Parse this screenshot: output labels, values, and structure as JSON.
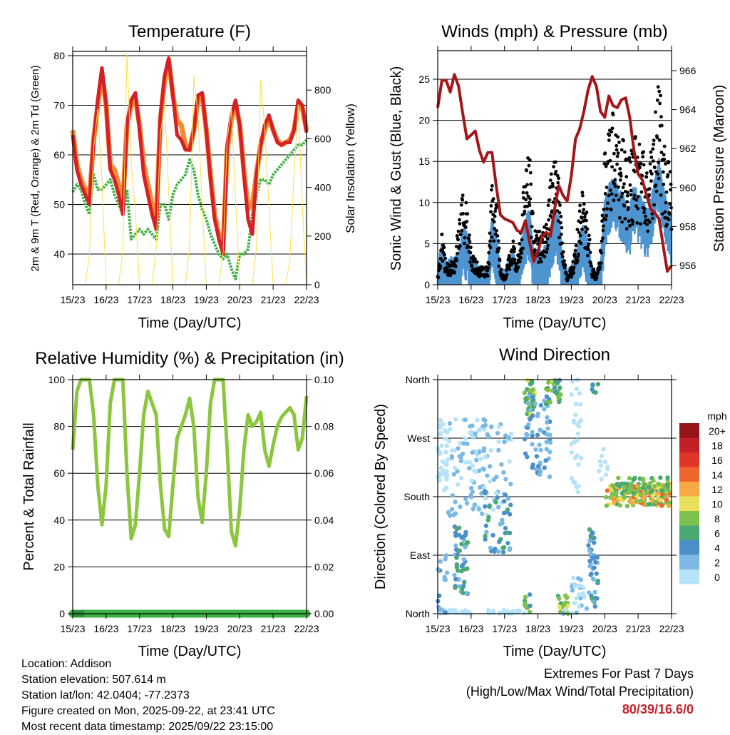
{
  "chart_data": [
    {
      "type": "line",
      "title": "Temperature (F)",
      "xlabel": "Time (Day/UTC)",
      "ylabel": "2m & 9m T (Red, Orange) & 2m Td (Green)",
      "ylabel_right": "Solar Insolation (Yellow)",
      "ylim": [
        34.1,
        81.1
      ],
      "y_ticks": [
        40,
        50,
        60,
        70,
        80
      ],
      "y2lim": [
        0,
        965
      ],
      "y2_ticks": [
        0,
        200,
        400,
        600,
        800
      ],
      "x_tick_labels": [
        "15/23",
        "16/23",
        "17/23",
        "18/23",
        "19/23",
        "20/23",
        "21/23",
        "22/23"
      ],
      "time_step_hours": 3,
      "grid": true,
      "series": [
        {
          "name": "9m T",
          "color": "#f58a2e",
          "axis": "left",
          "values": [
            65,
            58,
            55,
            53,
            51,
            63,
            70,
            76.5,
            70,
            58,
            57,
            54,
            50,
            66,
            70,
            71.5,
            66,
            58,
            54,
            50,
            47,
            67,
            75,
            79,
            72,
            67,
            66,
            62,
            61,
            65,
            71,
            72,
            65,
            56,
            48,
            44,
            41,
            61,
            67,
            70.5,
            66,
            57,
            49,
            50,
            56,
            62,
            65,
            67.5,
            65,
            63,
            62,
            62.5,
            63,
            65,
            70,
            69.5,
            65
          ]
        },
        {
          "name": "2m T",
          "color": "#d42026",
          "axis": "left",
          "values": [
            64,
            57,
            54,
            52,
            50,
            63,
            71,
            77.5,
            70,
            57,
            55,
            52,
            48,
            66,
            71,
            72.5,
            65,
            56,
            52,
            48,
            45,
            68,
            76,
            79.5,
            72,
            64,
            63,
            61,
            61,
            65,
            72,
            72.5,
            65,
            55,
            47,
            43,
            40,
            62,
            68,
            71,
            66,
            56,
            47,
            44,
            56,
            62,
            66,
            68,
            65,
            62.5,
            62,
            62.5,
            62.5,
            65,
            71,
            70,
            64.5
          ]
        },
        {
          "name": "2m Td",
          "color": "#3cb043",
          "axis": "left",
          "values": [
            52.5,
            54,
            53,
            50,
            48,
            56,
            53,
            53,
            54,
            55,
            52,
            50,
            48,
            53,
            43,
            44,
            45,
            44,
            45,
            44,
            43,
            50,
            50,
            47,
            52,
            54,
            55,
            56,
            59,
            57,
            52,
            49,
            47,
            44,
            42,
            40,
            39,
            40,
            37,
            35,
            40,
            40,
            41,
            48,
            52,
            55,
            55,
            54,
            56,
            57,
            58,
            59,
            60,
            61,
            62,
            62,
            63
          ]
        },
        {
          "name": "Solar Insolation",
          "color": "#f9e04b",
          "axis": "right",
          "values": [
            0,
            0,
            0,
            0,
            120,
            560,
            720,
            430,
            0,
            0,
            0,
            0,
            140,
            950,
            500,
            300,
            0,
            0,
            0,
            0,
            150,
            620,
            740,
            380,
            0,
            0,
            0,
            0,
            160,
            860,
            700,
            330,
            0,
            0,
            0,
            0,
            130,
            600,
            720,
            350,
            0,
            0,
            0,
            0,
            150,
            840,
            640,
            320,
            0,
            0,
            0,
            0,
            100,
            450,
            740,
            330,
            0
          ]
        }
      ]
    },
    {
      "type": "line",
      "title": "Winds (mph) & Pressure (mb)",
      "xlabel": "Time (Day/UTC)",
      "ylabel": "Sonic Wind & Gust (Blue, Black)",
      "ylabel_right": "Station Pressure (Maroon)",
      "ylim": [
        0,
        28.5
      ],
      "y_ticks": [
        0,
        5,
        10,
        15,
        20,
        25
      ],
      "y2lim": [
        955.4,
        967.4
      ],
      "y2_ticks": [
        956,
        958,
        960,
        962,
        964,
        966
      ],
      "x_tick_labels": [
        "15/23",
        "16/23",
        "17/23",
        "18/23",
        "19/23",
        "20/23",
        "21/23",
        "22/23"
      ],
      "time_step_hours": 3,
      "grid": true,
      "series": [
        {
          "name": "Sonic Wind",
          "color": "#4e95d0",
          "axis": "left",
          "values": [
            1,
            4,
            1.5,
            2,
            2,
            3,
            6,
            5,
            2,
            2,
            1,
            1,
            1,
            7,
            5,
            1,
            0.5,
            2,
            3,
            1.5,
            4,
            7,
            8,
            3,
            3,
            3,
            4,
            6,
            8,
            7,
            2,
            0.5,
            1,
            2,
            5,
            6,
            4,
            1,
            0.5,
            2,
            9,
            11,
            12,
            11,
            10,
            9,
            8,
            11,
            10,
            9,
            8,
            9,
            12,
            14,
            11,
            9,
            7
          ]
        },
        {
          "name": "Gust",
          "color": "#000000",
          "axis": "left",
          "values": [
            1,
            6,
            2.5,
            2.5,
            3,
            7,
            11,
            9,
            4,
            3,
            2,
            2,
            2,
            12,
            10,
            2,
            1,
            3,
            5,
            3,
            7,
            14,
            17,
            6,
            6,
            6,
            7,
            12,
            15,
            13,
            4,
            1,
            2,
            4,
            9,
            11,
            7,
            2,
            1,
            4,
            15,
            19,
            20,
            18,
            17,
            15,
            14,
            17,
            16,
            15,
            14,
            15,
            20,
            23,
            18,
            15,
            12
          ]
        },
        {
          "name": "Station Pressure",
          "color": "#a3171b",
          "axis": "right",
          "values": [
            964.1,
            965.5,
            965.5,
            964.9,
            965.8,
            965.2,
            963.8,
            962.5,
            962.7,
            962.9,
            961.9,
            961.3,
            961.8,
            961.8,
            960.1,
            958.6,
            958.4,
            958.3,
            958.2,
            957.8,
            957.7,
            958.3,
            957.2,
            956.2,
            956.7,
            957.5,
            957.7,
            957.5,
            958.9,
            960.1,
            959.6,
            959.3,
            960.6,
            962.5,
            963.0,
            963.9,
            965.0,
            965.7,
            965.2,
            963.9,
            963.6,
            964.7,
            964.2,
            964.1,
            964.5,
            964.6,
            963.6,
            961.9,
            960.7,
            960.4,
            959.6,
            958.9,
            958.7,
            958.4,
            957.0,
            955.7,
            956.0
          ]
        }
      ]
    },
    {
      "type": "line",
      "title": "Relative Humidity (%) & Precipitation (in)",
      "xlabel": "Time (Day/UTC)",
      "ylabel": "Percent & Total Rainfall",
      "ylim": [
        0,
        100
      ],
      "y_ticks": [
        0,
        20,
        40,
        60,
        80,
        100
      ],
      "y2lim": [
        0,
        0.1
      ],
      "y2_ticks": [
        0,
        0.02,
        0.04,
        0.06,
        0.08,
        0.1
      ],
      "y2_tick_labels": [
        "0.00",
        "0.02",
        "0.04",
        "0.06",
        "0.08",
        "0.10"
      ],
      "x_tick_labels": [
        "15/23",
        "16/23",
        "17/23",
        "18/23",
        "19/23",
        "20/23",
        "21/23",
        "22/23"
      ],
      "time_step_hours": 3,
      "grid": true,
      "series": [
        {
          "name": "Relative Humidity",
          "color": "#8cc63f",
          "axis": "left",
          "values": [
            70,
            95,
            100,
            100,
            100,
            85,
            55,
            38,
            55,
            90,
            100,
            100,
            100,
            60,
            32,
            38,
            60,
            85,
            95,
            90,
            85,
            55,
            36,
            33,
            55,
            75,
            80,
            85,
            92,
            80,
            50,
            39,
            60,
            90,
            100,
            100,
            100,
            70,
            35,
            29,
            45,
            70,
            85,
            80,
            82,
            86,
            70,
            63,
            72,
            80,
            84,
            86,
            88,
            85,
            70,
            75,
            93
          ]
        },
        {
          "name": "Total Precipitation",
          "color": "#3cb043",
          "axis": "right",
          "values": [
            0,
            0,
            0,
            0,
            0,
            0,
            0,
            0,
            0,
            0,
            0,
            0,
            0,
            0,
            0,
            0,
            0,
            0,
            0,
            0,
            0,
            0,
            0,
            0,
            0,
            0,
            0,
            0,
            0,
            0,
            0,
            0,
            0,
            0,
            0,
            0,
            0,
            0,
            0,
            0,
            0,
            0,
            0,
            0,
            0,
            0,
            0,
            0,
            0,
            0,
            0,
            0,
            0,
            0,
            0,
            0,
            0
          ]
        }
      ]
    },
    {
      "type": "scatter",
      "title": "Wind Direction",
      "xlabel": "Time (Day/UTC)",
      "ylabel": "Direction (Colored By Speed)",
      "ylim": [
        0,
        360
      ],
      "y_ticks": [
        0,
        90,
        180,
        270,
        360
      ],
      "y_tick_labels": [
        "North",
        "East",
        "South",
        "West",
        "North"
      ],
      "x_tick_labels": [
        "15/23",
        "16/23",
        "17/23",
        "18/23",
        "19/23",
        "20/23",
        "21/23",
        "22/23"
      ],
      "grid": true,
      "legend": {
        "title": "mph",
        "placement": "right",
        "labels": [
          "20+",
          "18",
          "16",
          "14",
          "12",
          "10",
          "8",
          "6",
          "4",
          "2",
          "0"
        ],
        "colors": [
          "#94161b",
          "#c21f26",
          "#e03528",
          "#f0652e",
          "#f7a944",
          "#e8e05a",
          "#7dc24e",
          "#4aa872",
          "#4b8fc8",
          "#7bb8e4",
          "#b6e3f8"
        ]
      },
      "clusters_days_deg_mph": [
        {
          "days": [
            0.0,
            0.3
          ],
          "dir": [
            190,
            300
          ],
          "speed": [
            0,
            2
          ],
          "n": 40
        },
        {
          "days": [
            0.0,
            1.0
          ],
          "dir": [
            0,
            6
          ],
          "speed": [
            0,
            2
          ],
          "n": 30
        },
        {
          "days": [
            0.0,
            0.3
          ],
          "dir": [
            0,
            90
          ],
          "speed": [
            2,
            5
          ],
          "n": 15
        },
        {
          "days": [
            0.5,
            0.9
          ],
          "dir": [
            30,
            140
          ],
          "speed": [
            3,
            7
          ],
          "n": 45
        },
        {
          "days": [
            0.3,
            1.5
          ],
          "dir": [
            150,
            300
          ],
          "speed": [
            0,
            4
          ],
          "n": 70
        },
        {
          "days": [
            1.0,
            2.2
          ],
          "dir": [
            150,
            300
          ],
          "speed": [
            0,
            4
          ],
          "n": 60
        },
        {
          "days": [
            1.4,
            2.2
          ],
          "dir": [
            90,
            190
          ],
          "speed": [
            3,
            7
          ],
          "n": 45
        },
        {
          "days": [
            1.4,
            2.6
          ],
          "dir": [
            0,
            6
          ],
          "speed": [
            0,
            2
          ],
          "n": 20
        },
        {
          "days": [
            2.6,
            2.9
          ],
          "dir": [
            300,
            360
          ],
          "speed": [
            5,
            11
          ],
          "n": 45
        },
        {
          "days": [
            2.6,
            3.4
          ],
          "dir": [
            210,
            335
          ],
          "speed": [
            2,
            5
          ],
          "n": 60
        },
        {
          "days": [
            2.6,
            2.8
          ],
          "dir": [
            0,
            30
          ],
          "speed": [
            4,
            10
          ],
          "n": 10
        },
        {
          "days": [
            3.2,
            3.7
          ],
          "dir": [
            320,
            360
          ],
          "speed": [
            5,
            11
          ],
          "n": 30
        },
        {
          "days": [
            3.6,
            3.9
          ],
          "dir": [
            0,
            30
          ],
          "speed": [
            6,
            11
          ],
          "n": 25
        },
        {
          "days": [
            3.7,
            4.5
          ],
          "dir": [
            0,
            60
          ],
          "speed": [
            0,
            4
          ],
          "n": 25
        },
        {
          "days": [
            4.0,
            4.3
          ],
          "dir": [
            180,
            360
          ],
          "speed": [
            0,
            2
          ],
          "n": 30
        },
        {
          "days": [
            4.5,
            4.8
          ],
          "dir": [
            10,
            130
          ],
          "speed": [
            2,
            7
          ],
          "n": 45
        },
        {
          "days": [
            4.6,
            4.8
          ],
          "dir": [
            340,
            360
          ],
          "speed": [
            5,
            8
          ],
          "n": 6
        },
        {
          "days": [
            4.8,
            5.1
          ],
          "dir": [
            200,
            270
          ],
          "speed": [
            0,
            2
          ],
          "n": 10
        },
        {
          "days": [
            5.0,
            7.0
          ],
          "dir": [
            165,
            200
          ],
          "speed": [
            7,
            15
          ],
          "n": 170
        },
        {
          "days": [
            5.2,
            6.9
          ],
          "dir": [
            185,
            210
          ],
          "speed": [
            6,
            10
          ],
          "n": 50
        }
      ]
    }
  ],
  "footer": {
    "location": "Location: Addison",
    "elevation": "Station elevation: 507.614 m",
    "latlon": "Station lat/lon: 42.0404; -77.2373",
    "created": "Figure created on Mon, 2025-09-22, at 23:41 UTC",
    "recent": "Most recent data timestamp: 2025/09/22 23:15:00",
    "extremes_title": "Extremes For Past 7 Days",
    "extremes_subtitle": "(High/Low/Max Wind/Total Precipitation)",
    "extremes_values": "80/39/16.6/0"
  }
}
